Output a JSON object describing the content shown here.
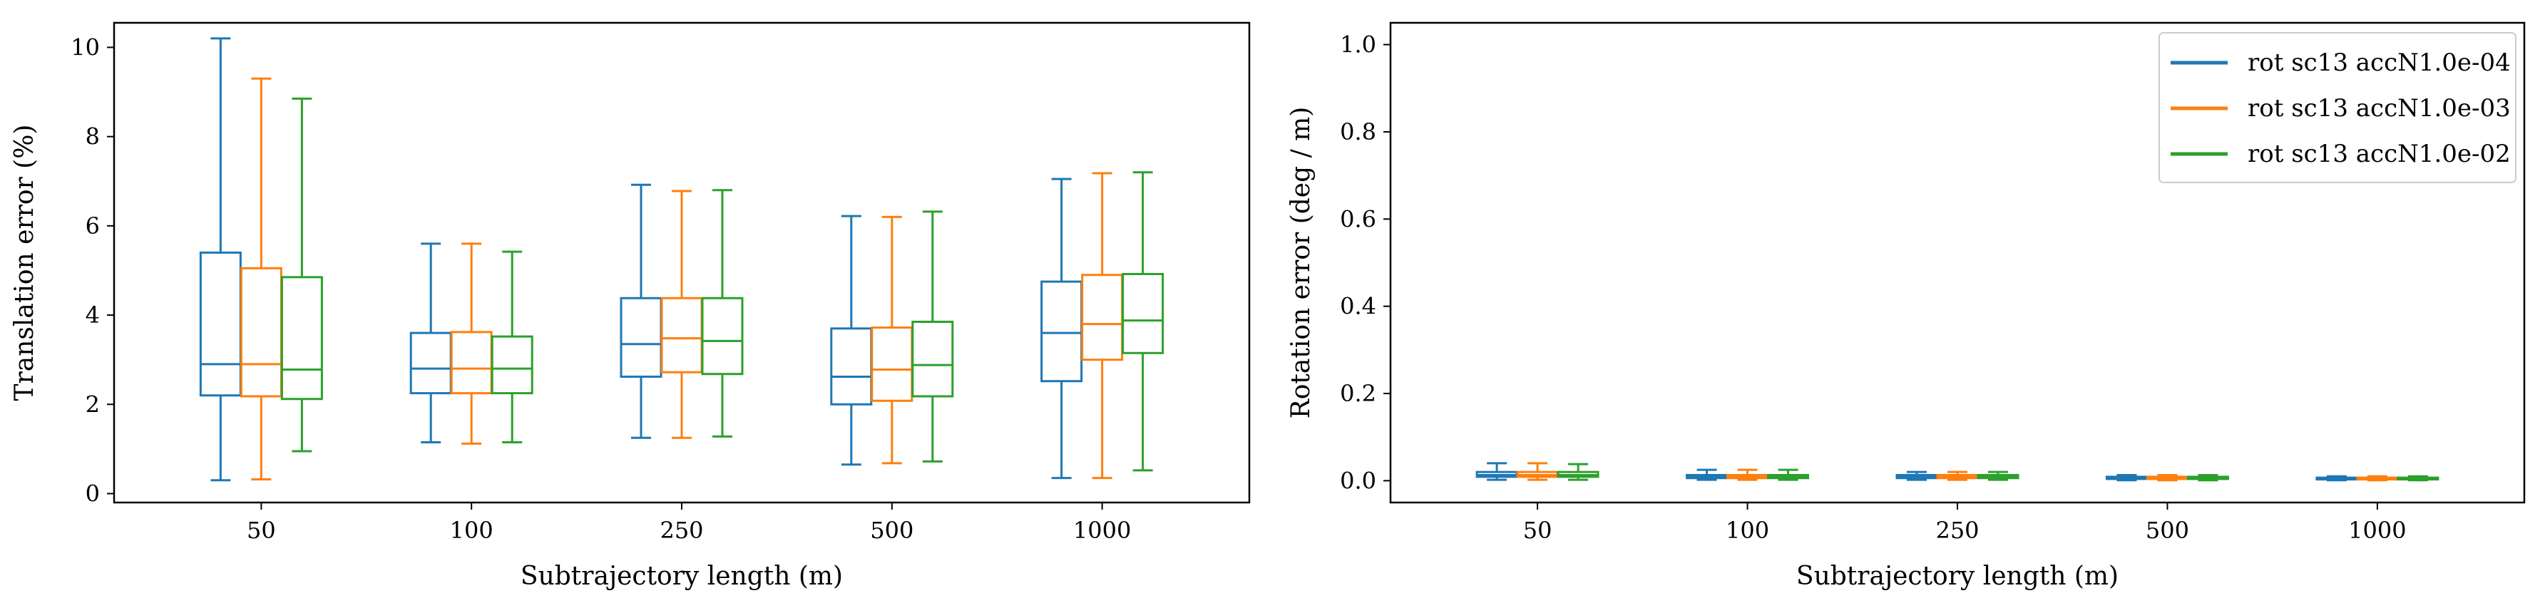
{
  "chart_data": [
    {
      "type": "box",
      "xlabel": "Subtrajectory length (m)",
      "ylabel": "Translation error (%)",
      "categories": [
        "50",
        "100",
        "250",
        "500",
        "1000"
      ],
      "ylim": [
        -0.2,
        10.55
      ],
      "yticks": [
        0,
        2,
        4,
        6,
        8,
        10
      ],
      "grid": false,
      "legend": false,
      "series": [
        {
          "color": "#1f77b4",
          "boxes": [
            {
              "whislo": 0.3,
              "q1": 2.2,
              "med": 2.9,
              "q3": 5.4,
              "whishi": 10.2
            },
            {
              "whislo": 1.15,
              "q1": 2.25,
              "med": 2.8,
              "q3": 3.6,
              "whishi": 5.6
            },
            {
              "whislo": 1.25,
              "q1": 2.62,
              "med": 3.35,
              "q3": 4.38,
              "whishi": 6.92
            },
            {
              "whislo": 0.65,
              "q1": 2.0,
              "med": 2.62,
              "q3": 3.7,
              "whishi": 6.22
            },
            {
              "whislo": 0.35,
              "q1": 2.52,
              "med": 3.6,
              "q3": 4.75,
              "whishi": 7.05
            }
          ]
        },
        {
          "color": "#ff7f0e",
          "boxes": [
            {
              "whislo": 0.32,
              "q1": 2.18,
              "med": 2.9,
              "q3": 5.05,
              "whishi": 9.3
            },
            {
              "whislo": 1.12,
              "q1": 2.25,
              "med": 2.8,
              "q3": 3.62,
              "whishi": 5.6
            },
            {
              "whislo": 1.25,
              "q1": 2.72,
              "med": 3.48,
              "q3": 4.38,
              "whishi": 6.78
            },
            {
              "whislo": 0.68,
              "q1": 2.08,
              "med": 2.78,
              "q3": 3.72,
              "whishi": 6.2
            },
            {
              "whislo": 0.35,
              "q1": 3.0,
              "med": 3.8,
              "q3": 4.9,
              "whishi": 7.18
            }
          ]
        },
        {
          "color": "#2ca02c",
          "boxes": [
            {
              "whislo": 0.95,
              "q1": 2.12,
              "med": 2.78,
              "q3": 4.85,
              "whishi": 8.85
            },
            {
              "whislo": 1.15,
              "q1": 2.25,
              "med": 2.8,
              "q3": 3.52,
              "whishi": 5.42
            },
            {
              "whislo": 1.28,
              "q1": 2.68,
              "med": 3.42,
              "q3": 4.38,
              "whishi": 6.8
            },
            {
              "whislo": 0.72,
              "q1": 2.18,
              "med": 2.88,
              "q3": 3.85,
              "whishi": 6.32
            },
            {
              "whislo": 0.52,
              "q1": 3.15,
              "med": 3.88,
              "q3": 4.92,
              "whishi": 7.2
            }
          ]
        }
      ]
    },
    {
      "type": "box",
      "xlabel": "Subtrajectory length (m)",
      "ylabel": "Rotation error (deg / m)",
      "categories": [
        "50",
        "100",
        "250",
        "500",
        "1000"
      ],
      "ylim": [
        -0.05,
        1.05
      ],
      "yticks": [
        "0.0",
        "0.2",
        "0.4",
        "0.6",
        "0.8",
        "1.0"
      ],
      "grid": false,
      "legend": "top-right",
      "series": [
        {
          "name": "rot sc13 accN1.0e-04",
          "color": "#1f77b4",
          "boxes": [
            {
              "whislo": 0.002,
              "q1": 0.009,
              "med": 0.013,
              "q3": 0.02,
              "whishi": 0.04
            },
            {
              "whislo": 0.002,
              "q1": 0.006,
              "med": 0.009,
              "q3": 0.013,
              "whishi": 0.025
            },
            {
              "whislo": 0.002,
              "q1": 0.006,
              "med": 0.009,
              "q3": 0.013,
              "whishi": 0.02
            },
            {
              "whislo": 0.001,
              "q1": 0.004,
              "med": 0.006,
              "q3": 0.009,
              "whishi": 0.013
            },
            {
              "whislo": 0.001,
              "q1": 0.003,
              "med": 0.005,
              "q3": 0.007,
              "whishi": 0.01
            }
          ]
        },
        {
          "name": "rot sc13 accN1.0e-03",
          "color": "#ff7f0e",
          "boxes": [
            {
              "whislo": 0.002,
              "q1": 0.009,
              "med": 0.013,
              "q3": 0.02,
              "whishi": 0.04
            },
            {
              "whislo": 0.002,
              "q1": 0.006,
              "med": 0.009,
              "q3": 0.013,
              "whishi": 0.025
            },
            {
              "whislo": 0.002,
              "q1": 0.006,
              "med": 0.009,
              "q3": 0.013,
              "whishi": 0.02
            },
            {
              "whislo": 0.001,
              "q1": 0.004,
              "med": 0.006,
              "q3": 0.009,
              "whishi": 0.013
            },
            {
              "whislo": 0.001,
              "q1": 0.003,
              "med": 0.005,
              "q3": 0.007,
              "whishi": 0.01
            }
          ]
        },
        {
          "name": "rot sc13 accN1.0e-02",
          "color": "#2ca02c",
          "boxes": [
            {
              "whislo": 0.002,
              "q1": 0.009,
              "med": 0.013,
              "q3": 0.02,
              "whishi": 0.038
            },
            {
              "whislo": 0.002,
              "q1": 0.006,
              "med": 0.009,
              "q3": 0.013,
              "whishi": 0.025
            },
            {
              "whislo": 0.002,
              "q1": 0.006,
              "med": 0.009,
              "q3": 0.013,
              "whishi": 0.02
            },
            {
              "whislo": 0.001,
              "q1": 0.004,
              "med": 0.006,
              "q3": 0.009,
              "whishi": 0.013
            },
            {
              "whislo": 0.001,
              "q1": 0.003,
              "med": 0.005,
              "q3": 0.007,
              "whishi": 0.01
            }
          ]
        }
      ]
    }
  ]
}
